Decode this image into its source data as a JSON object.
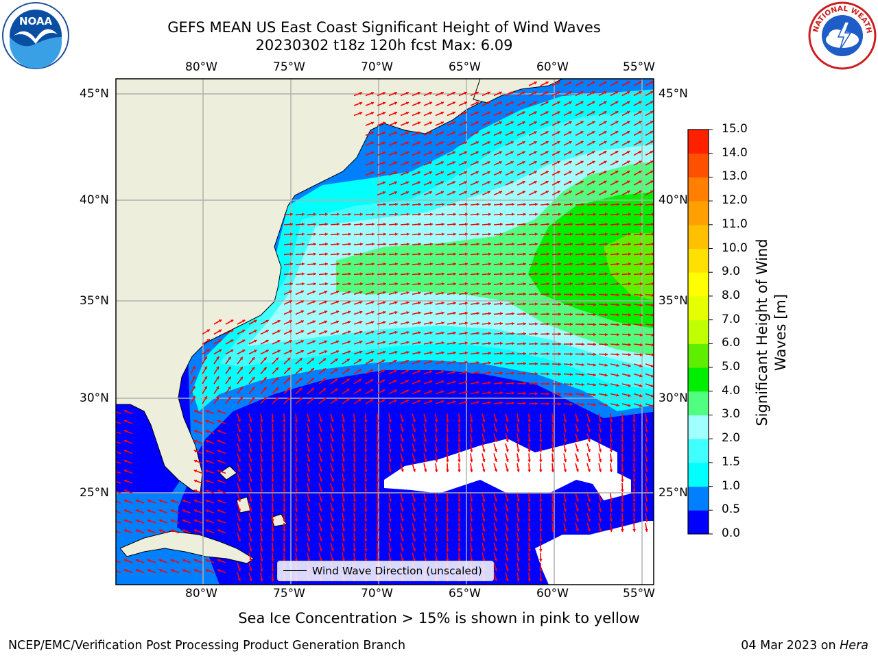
{
  "title_line1": "GEFS MEAN US East Coast Significant Height of Wind Waves",
  "title_line2": "20230302 t18z 120h fcst   Max: 6.09",
  "lon_labels": [
    "80°W",
    "75°W",
    "70°W",
    "65°W",
    "60°W",
    "55°W"
  ],
  "lat_labels": [
    "45°N",
    "40°N",
    "35°N",
    "30°N",
    "25°N"
  ],
  "legend_label": "Wind Wave Direction (unscaled)",
  "colorbar": {
    "label": "Significant Height of Wind Waves [m]",
    "ticks": [
      "0.0",
      "0.5",
      "1.0",
      "1.5",
      "2.0",
      "3.0",
      "4.0",
      "5.0",
      "6.0",
      "7.0",
      "8.0",
      "9.0",
      "10.0",
      "11.0",
      "12.0",
      "13.0",
      "14.0",
      "15.0"
    ],
    "colors": [
      "#0000ff",
      "#0080ff",
      "#00ffff",
      "#40ffff",
      "#a0ffff",
      "#50ff80",
      "#00ee00",
      "#60ee00",
      "#c0ff00",
      "#e6ff00",
      "#ffff00",
      "#ffe000",
      "#ffc000",
      "#ffa000",
      "#ff8000",
      "#ff5000",
      "#ff2000"
    ]
  },
  "caption": "Sea Ice Concentration > 15% is shown in pink to yellow",
  "credit_left": "NCEP/EMC/Verification Post Processing Product Generation Branch",
  "credit_right_prefix": "04 Mar 2023 on ",
  "credit_right_host": "Hera",
  "logo_left": "NOAA",
  "logo_right_text": "NATIONAL WEATHER SERVICE",
  "colors": {
    "land": "#eeeedc",
    "no_data": "#ffffff",
    "arrow": "#ff0000",
    "grid": "#b0b0b0"
  }
}
